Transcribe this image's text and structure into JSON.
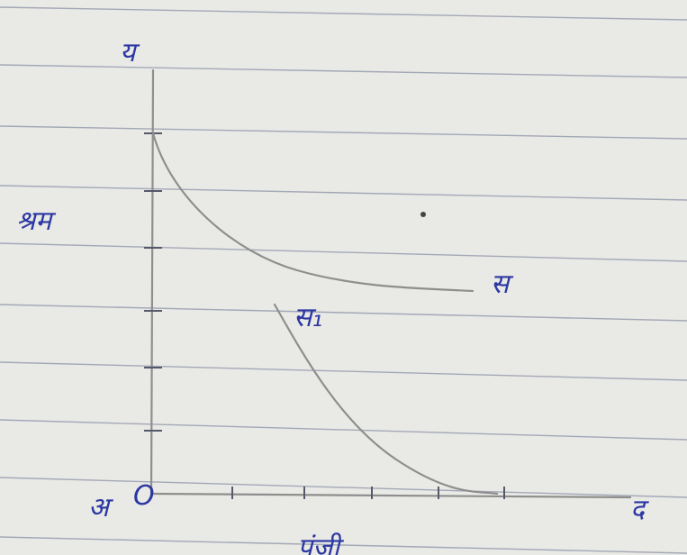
{
  "labels": {
    "y_axis_end": "य",
    "y_axis_title": "श्रम",
    "curve_1": "स",
    "curve_2": "स₁",
    "origin_letter": "अ",
    "origin": "O",
    "x_axis_end": "द",
    "x_axis_title": "पूंजी"
  }
}
